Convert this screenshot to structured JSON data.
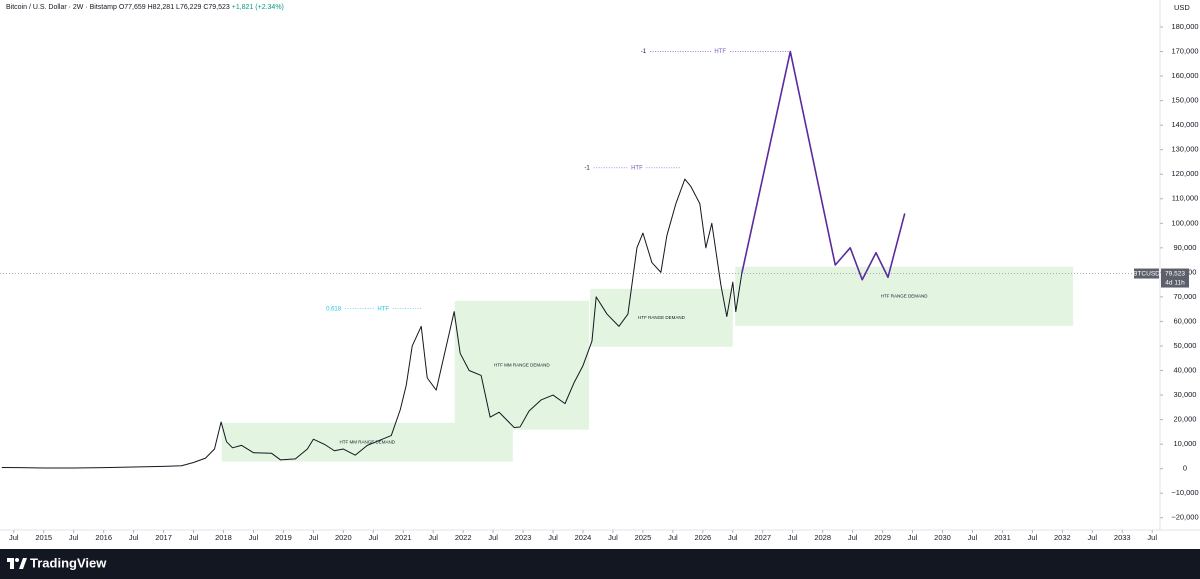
{
  "chart_data": {
    "type": "line",
    "title": "Bitcoin / U.S. Dollar · 2W · Bitstamp",
    "ohlc": [
      "O77,659",
      "H82,281",
      "L76,229",
      "C79,523",
      "+1,821 (+2.34%)"
    ],
    "y_unit": "USD",
    "brand": "TradingView",
    "grid": false,
    "xlim": [
      2014.27,
      2033.63
    ],
    "ylim": [
      -25000,
      191000
    ],
    "xticks": [
      {
        "value": 2014.5,
        "label": "Jul"
      },
      2015,
      {
        "value": 2015.5,
        "label": "Jul"
      },
      2016,
      {
        "value": 2016.5,
        "label": "Jul"
      },
      2017,
      {
        "value": 2017.5,
        "label": "Jul"
      },
      2018,
      {
        "value": 2018.5,
        "label": "Jul"
      },
      2019,
      {
        "value": 2019.5,
        "label": "Jul"
      },
      2020,
      {
        "value": 2020.5,
        "label": "Jul"
      },
      2021,
      {
        "value": 2021.5,
        "label": "Jul"
      },
      2022,
      {
        "value": 2022.5,
        "label": "Jul"
      },
      2023,
      {
        "value": 2023.5,
        "label": "Jul"
      },
      2024,
      {
        "value": 2024.5,
        "label": "Jul"
      },
      2025,
      {
        "value": 2025.5,
        "label": "Jul"
      },
      2026,
      {
        "value": 2026.5,
        "label": "Jul"
      },
      2027,
      {
        "value": 2027.5,
        "label": "Jul"
      },
      2028,
      {
        "value": 2028.5,
        "label": "Jul"
      },
      2029,
      {
        "value": 2029.5,
        "label": "Jul"
      },
      2030,
      {
        "value": 2030.5,
        "label": "Jul"
      },
      2031,
      {
        "value": 2031.5,
        "label": "Jul"
      },
      2032,
      {
        "value": 2032.5,
        "label": "Jul"
      },
      2033,
      {
        "value": 2033.5,
        "label": "Jul"
      }
    ],
    "yticks": [
      {
        "value": -20000,
        "label": "−20,000"
      },
      {
        "value": -10000,
        "label": "−10,000"
      },
      0,
      {
        "value": 10000,
        "label": "10,000"
      },
      {
        "value": 20000,
        "label": "20,000"
      },
      {
        "value": 30000,
        "label": "30,000"
      },
      {
        "value": 40000,
        "label": "40,000"
      },
      {
        "value": 50000,
        "label": "50,000"
      },
      {
        "value": 60000,
        "label": "60,000"
      },
      {
        "value": 70000,
        "label": "70,000"
      },
      {
        "value": 80000,
        "label": "80,000"
      },
      {
        "value": 90000,
        "label": "90,000"
      },
      {
        "value": 100000,
        "label": "100,000"
      },
      {
        "value": 110000,
        "label": "110,000"
      },
      {
        "value": 120000,
        "label": "120,000"
      },
      {
        "value": 130000,
        "label": "130,000"
      },
      {
        "value": 140000,
        "label": "140,000"
      },
      {
        "value": 150000,
        "label": "150,000"
      },
      {
        "value": 160000,
        "label": "160,000"
      },
      {
        "value": 170000,
        "label": "170,000"
      },
      {
        "value": 180000,
        "label": "180,000"
      }
    ],
    "series": [
      {
        "name": "BTCUSD",
        "color": "#131722",
        "x": [
          2014.3,
          2014.6,
          2015.0,
          2015.5,
          2016.0,
          2016.5,
          2017.0,
          2017.3,
          2017.5,
          2017.7,
          2017.85,
          2017.96,
          2018.05,
          2018.15,
          2018.3,
          2018.5,
          2018.8,
          2018.95,
          2019.2,
          2019.4,
          2019.5,
          2019.7,
          2019.85,
          2020.0,
          2020.2,
          2020.4,
          2020.6,
          2020.8,
          2020.95,
          2021.05,
          2021.15,
          2021.3,
          2021.4,
          2021.55,
          2021.7,
          2021.85,
          2021.95,
          2022.1,
          2022.3,
          2022.45,
          2022.6,
          2022.85,
          2022.95,
          2023.1,
          2023.3,
          2023.5,
          2023.7,
          2023.85,
          2024.0,
          2024.15,
          2024.22,
          2024.4,
          2024.6,
          2024.75,
          2024.9,
          2025.0,
          2025.15,
          2025.3,
          2025.4,
          2025.55,
          2025.7,
          2025.8,
          2025.95,
          2026.05,
          2026.15,
          2026.3,
          2026.4,
          2026.5,
          2026.55,
          2026.65
        ],
        "values": [
          480,
          400,
          280,
          270,
          420,
          650,
          950,
          1200,
          2500,
          4300,
          8000,
          19000,
          11000,
          8500,
          9500,
          6500,
          6300,
          3600,
          4000,
          8000,
          12000,
          9700,
          7300,
          8000,
          5500,
          9500,
          11500,
          13500,
          24000,
          34000,
          50000,
          58000,
          37000,
          32000,
          48000,
          64000,
          47000,
          40000,
          38000,
          21000,
          23000,
          16800,
          17000,
          23500,
          28000,
          30000,
          26500,
          35000,
          42000,
          52000,
          70000,
          63000,
          58000,
          63000,
          90000,
          96000,
          84000,
          80000,
          95000,
          108000,
          118000,
          115000,
          108000,
          90000,
          100000,
          75000,
          62000,
          76000,
          64000,
          79523
        ]
      },
      {
        "color": "#5b2a9e",
        "x": [
          2026.65,
          2027.46,
          2028.21,
          2028.46,
          2028.66,
          2028.89,
          2029.09,
          2029.37
        ],
        "values": [
          79523,
          170000,
          83000,
          90000,
          77000,
          88000,
          78000,
          104000
        ]
      }
    ],
    "zones": [
      {
        "label": "HTF MM RANGE DEMAND",
        "x": [
          2017.97,
          2022.83
        ],
        "y": [
          2900,
          18700
        ],
        "color": "#e3f5e1"
      },
      {
        "label": "HTF MM RANGE DEMAND",
        "x": [
          2021.86,
          2024.1
        ],
        "y": [
          15900,
          68400
        ],
        "color": "#e3f5e1"
      },
      {
        "label": "HTF RANGE DEMAND",
        "x": [
          2024.12,
          2026.5
        ],
        "y": [
          49700,
          73300
        ],
        "color": "#e3f5e1"
      },
      {
        "label": "HTF RANGE DEMAND",
        "x": [
          2026.54,
          2032.18
        ],
        "y": [
          58200,
          82300
        ],
        "color": "#e3f5e1"
      }
    ],
    "levels": [
      {
        "labels": [
          "-1",
          "HTF"
        ],
        "value": 170000,
        "x": [
          2025.12,
          2027.46
        ],
        "color": "#7e57c2"
      },
      {
        "labels": [
          "-1",
          "HTF"
        ],
        "value": 122600,
        "x": [
          2024.18,
          2025.62
        ],
        "color": "#7e57c2"
      },
      {
        "labels": [
          "0.618",
          "HTF"
        ],
        "value": 65200,
        "x": [
          2020.03,
          2021.3
        ],
        "color": "#26c6da"
      }
    ],
    "price_tag": {
      "symbol": "BTCUSD",
      "price": {
        "value": 79523,
        "label": "79,523"
      },
      "countdown": "4d 11h"
    }
  }
}
